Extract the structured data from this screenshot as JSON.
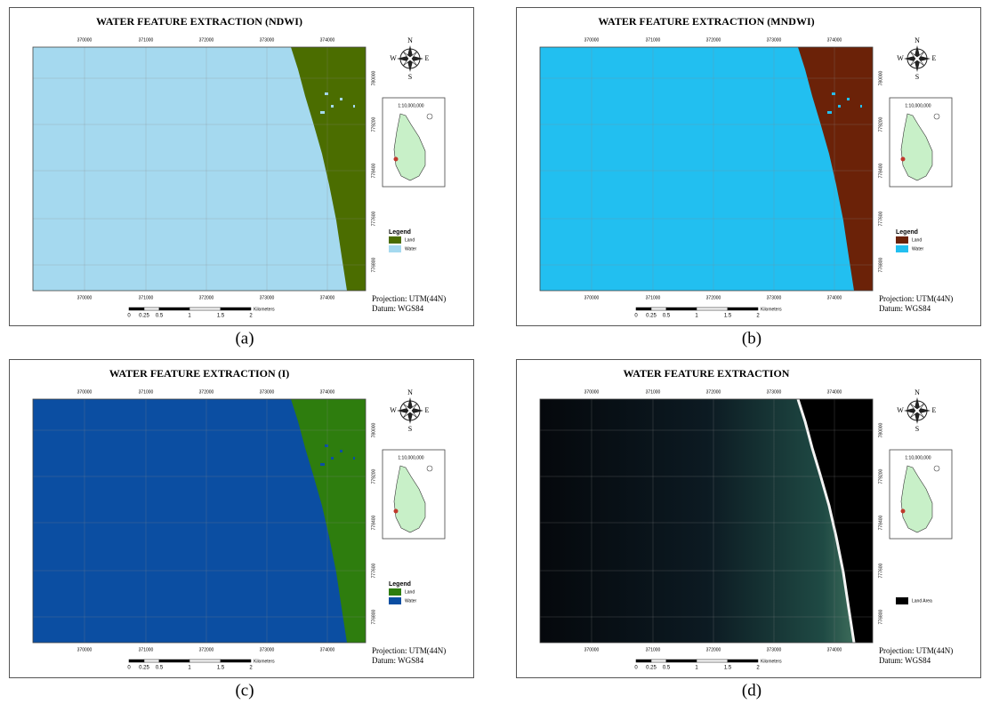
{
  "panels": [
    {
      "caption": "(a)",
      "title": "WATER FEATURE EXTRACTION (NDWI)",
      "x_ticks": [
        "370000",
        "371000",
        "372000",
        "373000",
        "374000"
      ],
      "y_ticks": [
        "780000",
        "779200",
        "778400",
        "777600",
        "776800"
      ],
      "compass": {
        "n": "N",
        "e": "E",
        "s": "S",
        "w": "W"
      },
      "inset_scale": "1:10,000,000",
      "legend": {
        "title": "Legend",
        "items": [
          {
            "label": "Land",
            "color": "#4b6d00"
          },
          {
            "label": "Water",
            "color": "#a5d9ef"
          }
        ]
      },
      "projection": "Projection: UTM(44N)",
      "datum": "Datum: WGS84",
      "scale_bar": {
        "labels": [
          "0",
          "0.25",
          "0.5",
          "1",
          "1.5",
          "2"
        ],
        "unit": "Kilometers"
      }
    },
    {
      "caption": "(b)",
      "title": "WATER FEATURE EXTRACTION (MNDWI)",
      "x_ticks": [
        "370000",
        "371000",
        "372000",
        "373000",
        "374000"
      ],
      "y_ticks": [
        "780000",
        "779200",
        "778400",
        "777600",
        "776800"
      ],
      "compass": {
        "n": "N",
        "e": "E",
        "s": "S",
        "w": "W"
      },
      "inset_scale": "1:10,000,000",
      "legend": {
        "title": "Legend",
        "items": [
          {
            "label": "Land",
            "color": "#6b2208"
          },
          {
            "label": "Water",
            "color": "#22bff0"
          }
        ]
      },
      "projection": "Projection: UTM(44N)",
      "datum": "Datum: WGS84",
      "scale_bar": {
        "labels": [
          "0",
          "0.25",
          "0.5",
          "1",
          "1.5",
          "2"
        ],
        "unit": "Kilometers"
      }
    },
    {
      "caption": "(c)",
      "title": "WATER FEATURE EXTRACTION (I)",
      "x_ticks": [
        "370000",
        "371000",
        "372000",
        "373000",
        "374000"
      ],
      "y_ticks": [
        "780000",
        "779200",
        "778400",
        "777600",
        "776800"
      ],
      "compass": {
        "n": "N",
        "e": "E",
        "s": "S",
        "w": "W"
      },
      "inset_scale": "1:10,000,000",
      "legend": {
        "title": "Legend",
        "items": [
          {
            "label": "Land",
            "color": "#2e7d0e"
          },
          {
            "label": "Water",
            "color": "#0b4ea2"
          }
        ]
      },
      "projection": "Projection: UTM(44N)",
      "datum": "Datum: WGS84",
      "scale_bar": {
        "labels": [
          "0",
          "0.25",
          "0.5",
          "1",
          "1.5",
          "2"
        ],
        "unit": "Kilometers"
      }
    },
    {
      "caption": "(d)",
      "title": "WATER FEATURE EXTRACTION",
      "x_ticks": [
        "370000",
        "371000",
        "372000",
        "373000",
        "374000"
      ],
      "y_ticks": [
        "780000",
        "779200",
        "778400",
        "777600",
        "776800"
      ],
      "compass": {
        "n": "N",
        "e": "E",
        "s": "S",
        "w": "W"
      },
      "inset_scale": "1:10,000,000",
      "legend": {
        "items": [
          {
            "label": "Land Area",
            "color": "#000000"
          }
        ]
      },
      "projection": "Projection: UTM(44N)",
      "datum": "Datum: WGS84",
      "scale_bar": {
        "labels": [
          "0",
          "0.25",
          "0.5",
          "1",
          "1.5",
          "2"
        ],
        "unit": "Kilometers"
      }
    }
  ]
}
